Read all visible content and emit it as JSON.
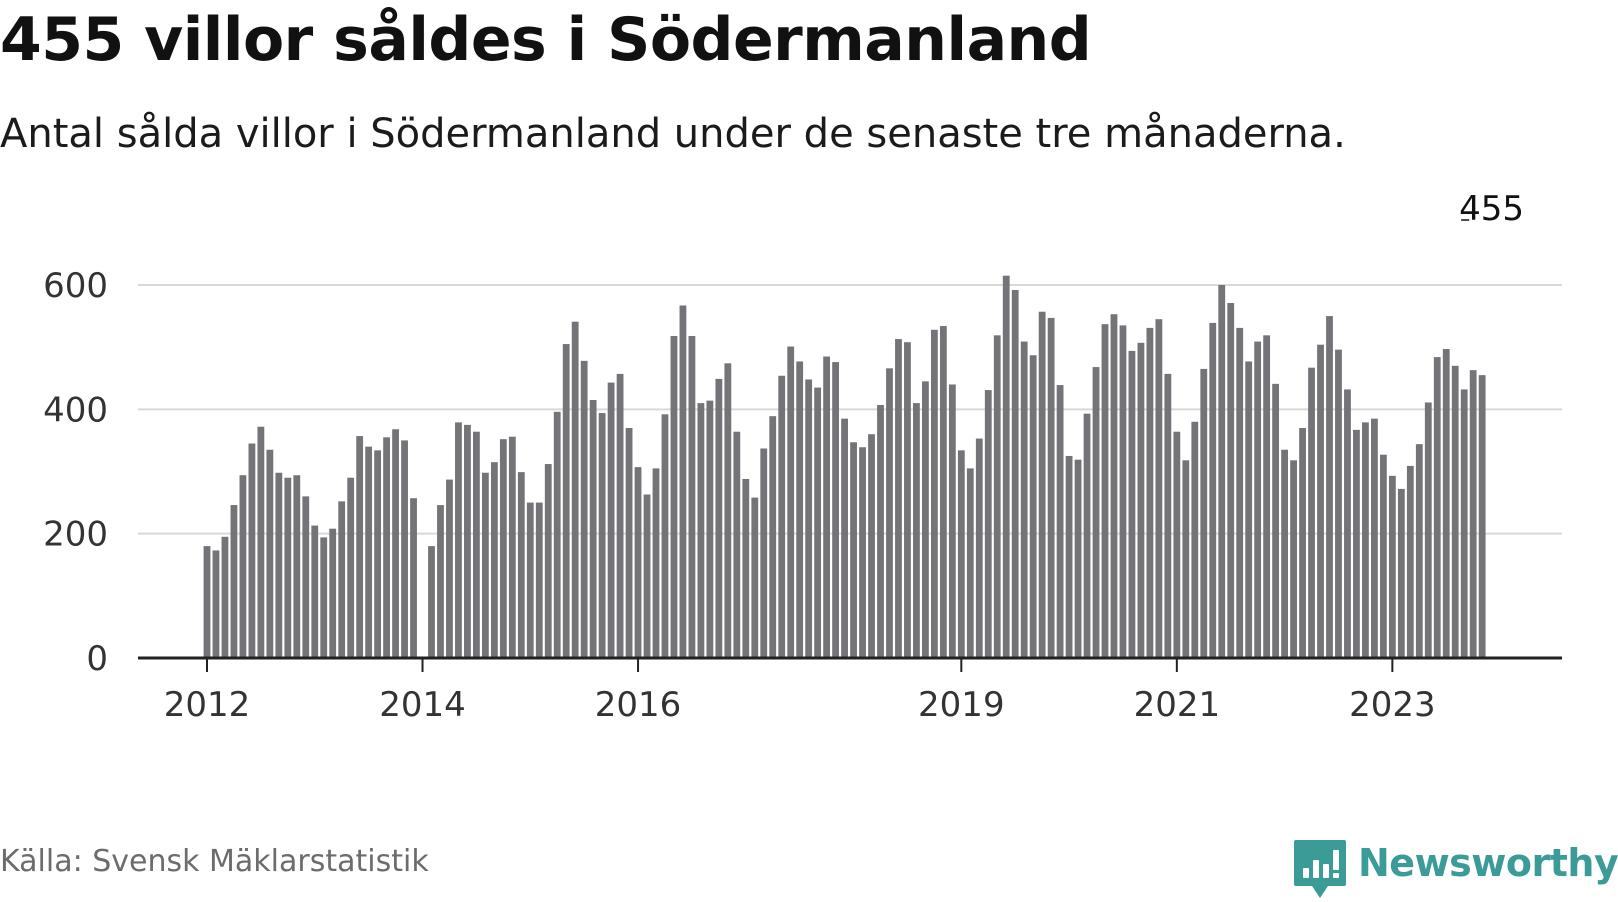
{
  "header": {
    "title": "455 villor såldes i Södermanland",
    "subtitle": "Antal sålda villor i Södermanland under de senaste tre månaderna."
  },
  "footer": {
    "source": "Källa: Svensk Mäklarstatistik",
    "brand_name": "Newsworthy",
    "brand_icon": "bar-chart-speech-bubble-icon"
  },
  "colors": {
    "bar": "#737378",
    "highlight": "#1a9e94",
    "grid": "#d9d9d9",
    "axis": "#222222",
    "brand": "#3b9c97"
  },
  "chart_data": {
    "type": "bar",
    "title": "455 villor såldes i Södermanland",
    "subtitle": "Antal sålda villor i Södermanland under de senaste tre månaderna.",
    "ylim": [
      0,
      600
    ],
    "yticks": [
      0,
      200,
      400,
      600
    ],
    "grid": true,
    "start": "2012-01",
    "xtick_labels": [
      "2012",
      "2014",
      "2016",
      "2019",
      "2021",
      "2023"
    ],
    "xtick_months": [
      "2012-01",
      "2014-01",
      "2016-01",
      "2019-01",
      "2021-01",
      "2023-01"
    ],
    "annotation": {
      "month": "2023-12",
      "text": "455"
    },
    "highlight_month": "2023-12",
    "values": [
      180,
      173,
      195,
      246,
      294,
      345,
      372,
      335,
      298,
      290,
      294,
      260,
      213,
      194,
      208,
      252,
      290,
      357,
      340,
      334,
      355,
      368,
      350,
      257,
      null,
      180,
      246,
      287,
      379,
      375,
      364,
      298,
      315,
      352,
      356,
      299,
      250,
      250,
      312,
      396,
      505,
      541,
      478,
      415,
      394,
      443,
      457,
      370,
      307,
      263,
      305,
      392,
      518,
      567,
      518,
      410,
      414,
      449,
      474,
      364,
      288,
      258,
      337,
      389,
      454,
      501,
      477,
      448,
      435,
      485,
      476,
      385,
      347,
      339,
      360,
      407,
      466,
      513,
      508,
      410,
      445,
      528,
      534,
      440,
      334,
      305,
      353,
      431,
      519,
      615,
      592,
      509,
      487,
      557,
      547,
      439,
      325,
      319,
      393,
      468,
      537,
      553,
      535,
      494,
      507,
      531,
      545,
      457,
      364,
      318,
      380,
      465,
      539,
      600,
      571,
      531,
      477,
      509,
      519,
      441,
      335,
      318,
      370,
      467,
      504,
      550,
      496,
      432,
      367,
      379,
      385,
      327,
      293,
      272,
      309,
      344,
      411,
      484,
      497,
      470,
      432,
      463,
      455
    ]
  }
}
